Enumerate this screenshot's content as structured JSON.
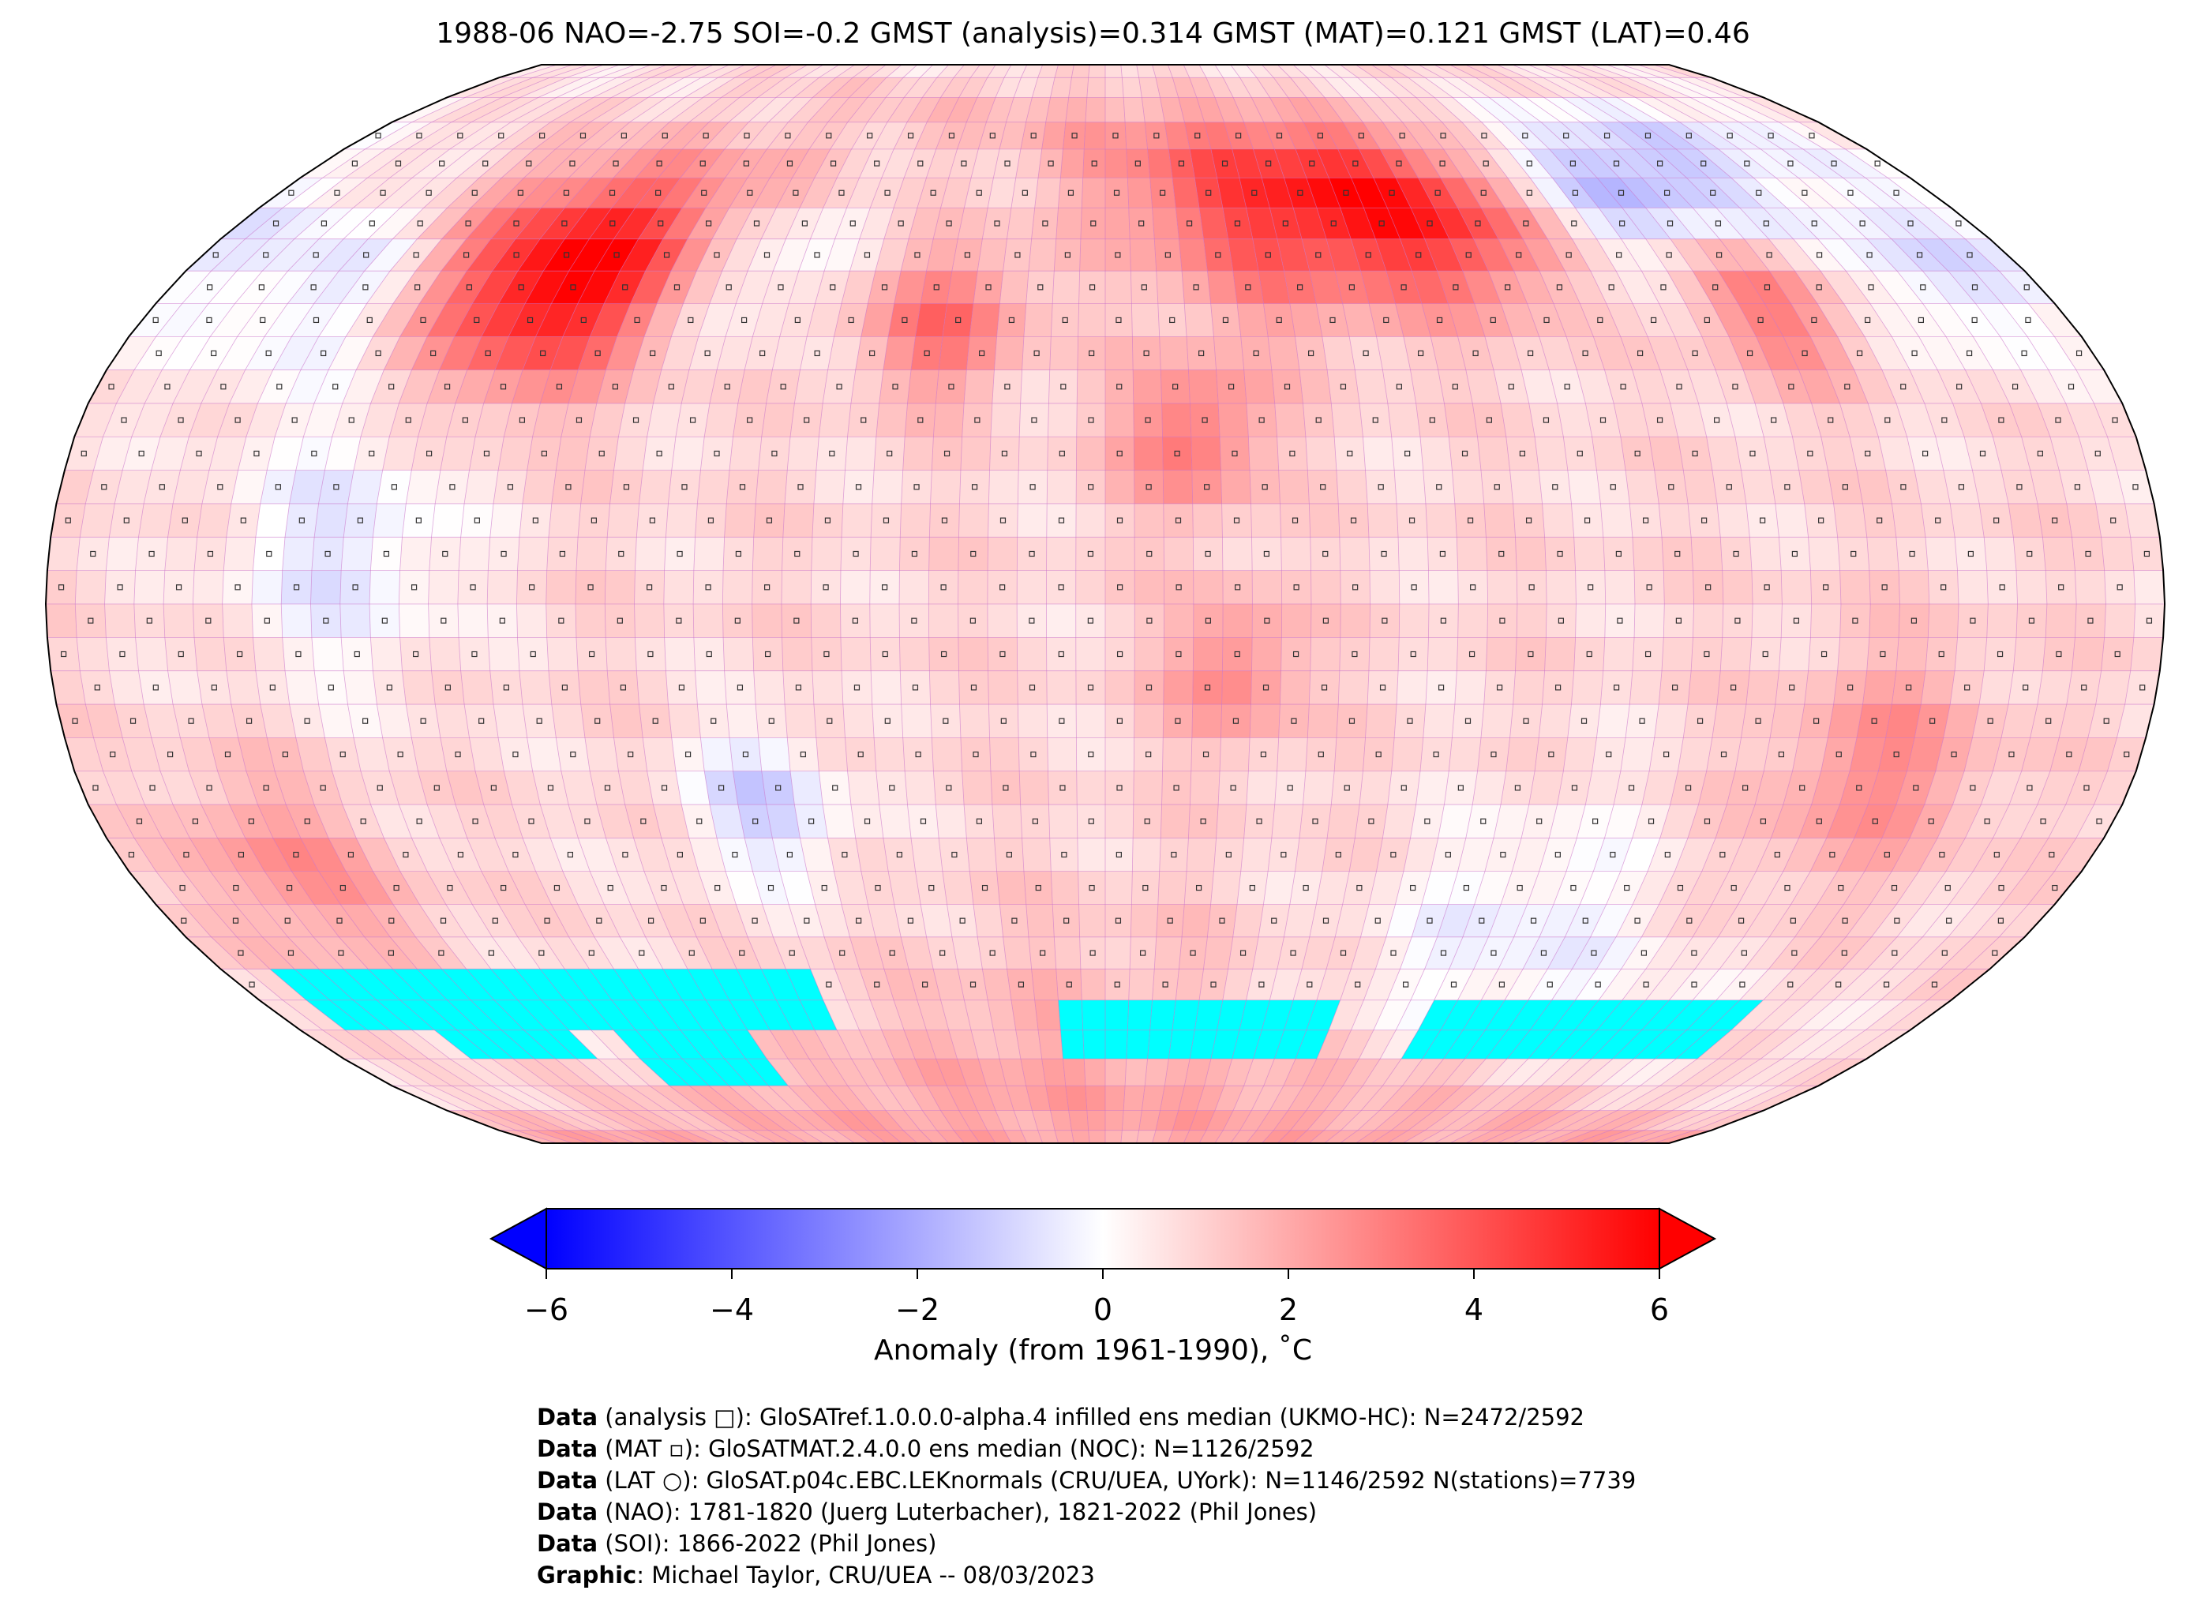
{
  "chart_data": {
    "type": "heatmap",
    "title": "1988-06 NAO=-2.75 SOI=-0.2 GMST (analysis)=0.314 GMST (MAT)=0.121 GMST (LAT)=0.46",
    "projection": "Robinson",
    "grid_resolution_deg": 5,
    "colorbar": {
      "label": "Anomaly (from 1961-1990), ˚C",
      "range": [
        -6,
        6
      ],
      "ticks": [
        -6,
        -4,
        -2,
        0,
        2,
        4,
        6
      ],
      "tick_labels": [
        "−6",
        "−4",
        "−2",
        "0",
        "2",
        "4",
        "6"
      ],
      "colormap": "bwr",
      "extend": "both",
      "low_color": "#0000ff",
      "mid_color": "#ffffff",
      "high_color": "#ff0000"
    },
    "background_anomaly": 0.9,
    "anomaly_regions": [
      {
        "name": "North America interior",
        "lon": -105,
        "lat": 50,
        "value": 5.5,
        "spread": 12
      },
      {
        "name": "Eastern Canada",
        "lon": -70,
        "lat": 52,
        "value": -1.5,
        "spread": 8
      },
      {
        "name": "North Atlantic",
        "lon": -30,
        "lat": 42,
        "value": 2.5,
        "spread": 8
      },
      {
        "name": "Scandinavia / W Russia",
        "lon": 35,
        "lat": 60,
        "value": 3.5,
        "spread": 12
      },
      {
        "name": "Central Siberia",
        "lon": 70,
        "lat": 58,
        "value": 3.5,
        "spread": 10
      },
      {
        "name": "East Siberia",
        "lon": 110,
        "lat": 65,
        "value": -3.0,
        "spread": 10
      },
      {
        "name": "NE China",
        "lon": 125,
        "lat": 45,
        "value": 2.5,
        "spread": 8
      },
      {
        "name": "North Pacific",
        "lon": 160,
        "lat": 50,
        "value": -1.5,
        "spread": 10
      },
      {
        "name": "NE Pacific",
        "lon": -150,
        "lat": 50,
        "value": -1.5,
        "spread": 12
      },
      {
        "name": "Equatorial Pacific",
        "lon": -130,
        "lat": 8,
        "value": -1.5,
        "spread": 14
      },
      {
        "name": "Sahara",
        "lon": 15,
        "lat": 25,
        "value": 2.5,
        "spread": 8
      },
      {
        "name": "Southern Africa",
        "lon": 22,
        "lat": -10,
        "value": 2.0,
        "spread": 8
      },
      {
        "name": "South America",
        "lon": -60,
        "lat": -30,
        "value": -2.0,
        "spread": 8
      },
      {
        "name": "Australia",
        "lon": 135,
        "lat": -25,
        "value": 1.8,
        "spread": 12
      },
      {
        "name": "Southern Ocean Indian sector",
        "lon": 80,
        "lat": -50,
        "value": -1.2,
        "spread": 14
      },
      {
        "name": "South Pacific",
        "lon": -150,
        "lat": -40,
        "value": 1.8,
        "spread": 10
      },
      {
        "name": "Antarctica",
        "lon": 0,
        "lat": -80,
        "value": 1.5,
        "spread": 20
      }
    ],
    "sea_ice_cells": [
      {
        "lat_range": [
          -65,
          -55
        ],
        "lon_range": [
          -170,
          -60
        ]
      },
      {
        "lat_range": [
          -70,
          -65
        ],
        "lon_range": [
          -150,
          -120
        ]
      },
      {
        "lat_range": [
          -75,
          -65
        ],
        "lon_range": [
          -110,
          -80
        ]
      },
      {
        "lat_range": [
          -70,
          -60
        ],
        "lon_range": [
          -10,
          50
        ]
      },
      {
        "lat_range": [
          -70,
          -60
        ],
        "lon_range": [
          70,
          140
        ]
      }
    ],
    "sea_ice_color": "#00ffff"
  },
  "footer": [
    {
      "label": "Data",
      "text": " (analysis □): GloSATref.1.0.0.0-alpha.4 infilled ens median (UKMO-HC): N=2472/2592"
    },
    {
      "label": "Data",
      "text": " (MAT ▫): GloSATMAT.2.4.0.0 ens median (NOC): N=1126/2592"
    },
    {
      "label": "Data",
      "text": " (LAT ○): GloSAT.p04c.EBC.LEKnormals (CRU/UEA, UYork): N=1146/2592 N(stations)=7739"
    },
    {
      "label": "Data",
      "text": " (NAO): 1781-1820 (Juerg Luterbacher), 1821-2022 (Phil Jones)"
    },
    {
      "label": "Data",
      "text": " (SOI): 1866-2022 (Phil Jones)"
    },
    {
      "label": "Graphic",
      "text": ": Michael Taylor, CRU/UEA -- 08/03/2023"
    }
  ]
}
